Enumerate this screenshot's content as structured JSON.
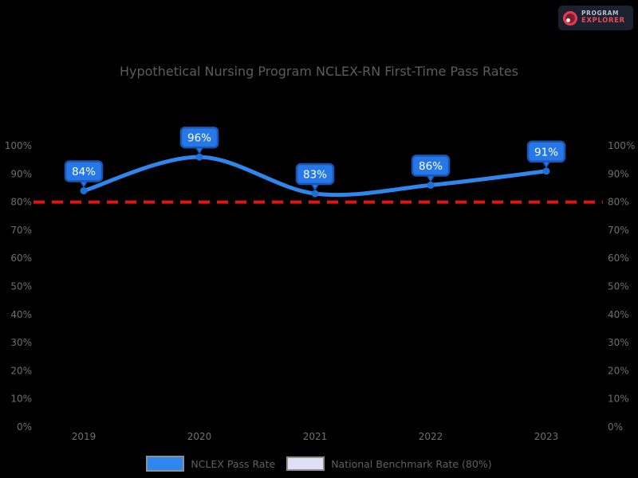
{
  "logo": {
    "line1": "PROGRAM",
    "line2": "EXPLORER"
  },
  "title": "Hypothetical Nursing Program NCLEX-RN First-Time Pass Rates",
  "chart_data": {
    "type": "line",
    "title": "Hypothetical Nursing Program NCLEX-RN First-Time Pass Rates",
    "categories": [
      "2019",
      "2020",
      "2021",
      "2022",
      "2023"
    ],
    "series": [
      {
        "name": "NCLEX Pass Rate",
        "values": [
          84,
          96,
          83,
          86,
          91
        ],
        "color": "#2f86ec",
        "marker_color": "#1e6fd6",
        "label_box_fill": "#2677e8",
        "label_box_border": "#1a55b0",
        "label_text_color": "#ffffff"
      }
    ],
    "data_labels": [
      "84%",
      "96%",
      "83%",
      "86%",
      "91%"
    ],
    "benchmark": {
      "label": "National Benchmark Rate (80%)",
      "value": 80,
      "line_color": "#e31414",
      "line_style": "dashed",
      "swatch_color": "#dfe0f7"
    },
    "xlabel": "",
    "ylabel": "",
    "ylim": [
      0,
      100
    ],
    "y_tick_step": 10,
    "y_tick_labels": [
      "100%",
      "90%",
      "80%",
      "70%",
      "60%",
      "50%",
      "40%",
      "30%",
      "20%",
      "10%",
      "0%"
    ],
    "axis_label_color": "#6f6f6f",
    "grid": false,
    "legend_position": "bottom",
    "smooth": true,
    "dual_y_axis": true
  },
  "legend": {
    "pass_rate_label": "NCLEX Pass Rate",
    "benchmark_label": "National Benchmark Rate (80%)"
  }
}
